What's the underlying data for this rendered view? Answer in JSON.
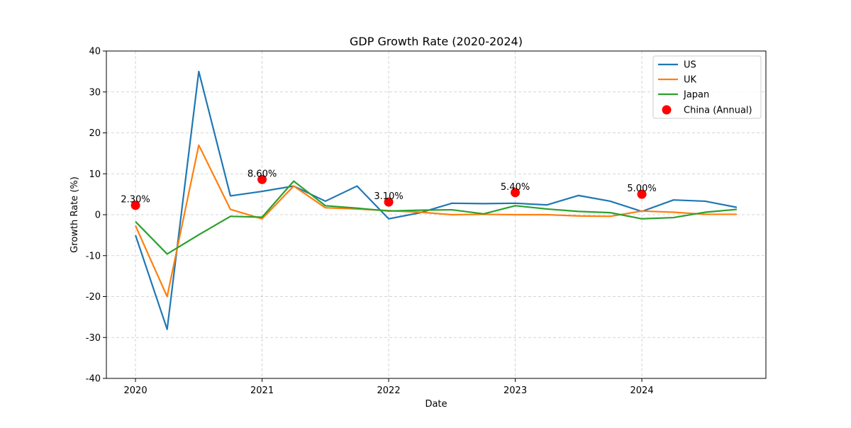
{
  "chart_data": {
    "type": "line",
    "title": "GDP Growth Rate (2020-2024)",
    "xlabel": "Date",
    "ylabel": "Growth Rate (%)",
    "ylim": [
      -40,
      40
    ],
    "xlim": [
      2019.77,
      2024.98
    ],
    "yticks": [
      -40,
      -30,
      -20,
      -10,
      0,
      10,
      20,
      30,
      40
    ],
    "xticks": [
      {
        "value": 2020,
        "label": "2020"
      },
      {
        "value": 2021,
        "label": "2021"
      },
      {
        "value": 2022,
        "label": "2022"
      },
      {
        "value": 2023,
        "label": "2023"
      },
      {
        "value": 2024,
        "label": "2024"
      }
    ],
    "grid": true,
    "legend_position": "top-right",
    "series": [
      {
        "name": "US",
        "color": "#1f77b4",
        "x": [
          2020,
          2020.25,
          2020.5,
          2020.75,
          2021,
          2021.25,
          2021.5,
          2021.75,
          2022,
          2022.25,
          2022.5,
          2022.75,
          2023,
          2023.25,
          2023.5,
          2023.75,
          2024,
          2024.25,
          2024.5,
          2024.75
        ],
        "y": [
          -5.0,
          -28.0,
          35.0,
          4.6,
          5.7,
          7.0,
          3.3,
          7.0,
          -1.0,
          0.5,
          2.8,
          2.7,
          2.8,
          2.4,
          4.7,
          3.3,
          0.8,
          3.6,
          3.3,
          1.8
        ]
      },
      {
        "name": "UK",
        "color": "#ff7f0e",
        "x": [
          2020,
          2020.25,
          2020.5,
          2020.75,
          2021,
          2021.25,
          2021.5,
          2021.75,
          2022,
          2022.25,
          2022.5,
          2022.75,
          2023,
          2023.25,
          2023.5,
          2023.75,
          2024,
          2024.25,
          2024.5,
          2024.75
        ],
        "y": [
          -2.7,
          -20.0,
          17.0,
          1.3,
          -1.0,
          7.0,
          1.7,
          1.4,
          1.0,
          0.6,
          0.0,
          0.1,
          0.0,
          0.0,
          -0.3,
          -0.4,
          0.9,
          0.6,
          0.1,
          0.1
        ]
      },
      {
        "name": "Japan",
        "color": "#2ca02c",
        "x": [
          2020,
          2020.25,
          2020.5,
          2020.75,
          2021,
          2021.25,
          2021.5,
          2021.75,
          2022,
          2022.25,
          2022.5,
          2022.75,
          2023,
          2023.25,
          2023.5,
          2023.75,
          2024,
          2024.25,
          2024.5,
          2024.75
        ],
        "y": [
          -1.7,
          -9.6,
          -4.9,
          -0.4,
          -0.6,
          8.2,
          2.2,
          1.6,
          0.9,
          1.1,
          1.2,
          0.2,
          2.2,
          1.4,
          0.8,
          0.5,
          -1.0,
          -0.7,
          0.6,
          1.3
        ]
      }
    ],
    "annual_points": {
      "name": "China (Annual)",
      "color": "#ff0000",
      "x": [
        2020,
        2021,
        2022,
        2023,
        2024
      ],
      "y": [
        2.3,
        8.6,
        3.1,
        5.4,
        5.0
      ],
      "labels": [
        "2.30%",
        "8.60%",
        "3.10%",
        "5.40%",
        "5.00%"
      ]
    }
  }
}
